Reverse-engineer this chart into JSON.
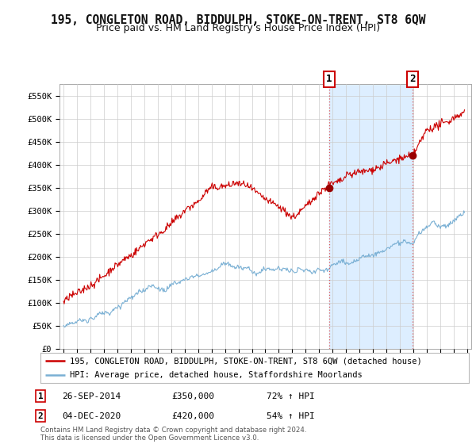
{
  "title": "195, CONGLETON ROAD, BIDDULPH, STOKE-ON-TRENT, ST8 6QW",
  "subtitle": "Price paid vs. HM Land Registry's House Price Index (HPI)",
  "ylabel_ticks": [
    "£0",
    "£50K",
    "£100K",
    "£150K",
    "£200K",
    "£250K",
    "£300K",
    "£350K",
    "£400K",
    "£450K",
    "£500K",
    "£550K"
  ],
  "ytick_values": [
    0,
    50000,
    100000,
    150000,
    200000,
    250000,
    300000,
    350000,
    400000,
    450000,
    500000,
    550000
  ],
  "ylim": [
    0,
    575000
  ],
  "xlim_start": 1994.7,
  "xlim_end": 2025.3,
  "sale1_x": 2014.74,
  "sale1_y": 350000,
  "sale2_x": 2020.92,
  "sale2_y": 420000,
  "house_color": "#cc0000",
  "hpi_color": "#7ab0d4",
  "shade_color": "#ddeeff",
  "legend_house": "195, CONGLETON ROAD, BIDDULPH, STOKE-ON-TRENT, ST8 6QW (detached house)",
  "legend_hpi": "HPI: Average price, detached house, Staffordshire Moorlands",
  "annotation1_date": "26-SEP-2014",
  "annotation1_price": "£350,000",
  "annotation1_hpi": "72% ↑ HPI",
  "annotation2_date": "04-DEC-2020",
  "annotation2_price": "£420,000",
  "annotation2_hpi": "54% ↑ HPI",
  "footer": "Contains HM Land Registry data © Crown copyright and database right 2024.\nThis data is licensed under the Open Government Licence v3.0.",
  "bg_color": "#ffffff",
  "grid_color": "#cccccc"
}
